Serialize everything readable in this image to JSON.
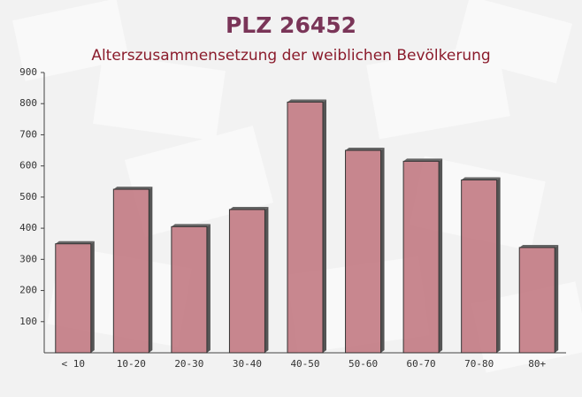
{
  "chart_data": {
    "type": "bar",
    "title": "PLZ 26452",
    "subtitle": "Alterszusammensetzung der weiblichen Bevölkerung",
    "categories": [
      "< 10",
      "10-20",
      "20-30",
      "30-40",
      "40-50",
      "50-60",
      "60-70",
      "70-80",
      "80+"
    ],
    "values": [
      350,
      525,
      405,
      460,
      805,
      650,
      615,
      555,
      338
    ],
    "color": "#c0737d",
    "ylim": [
      0,
      900
    ],
    "yticks": [
      100,
      200,
      300,
      400,
      500,
      600,
      700,
      800,
      900
    ]
  }
}
